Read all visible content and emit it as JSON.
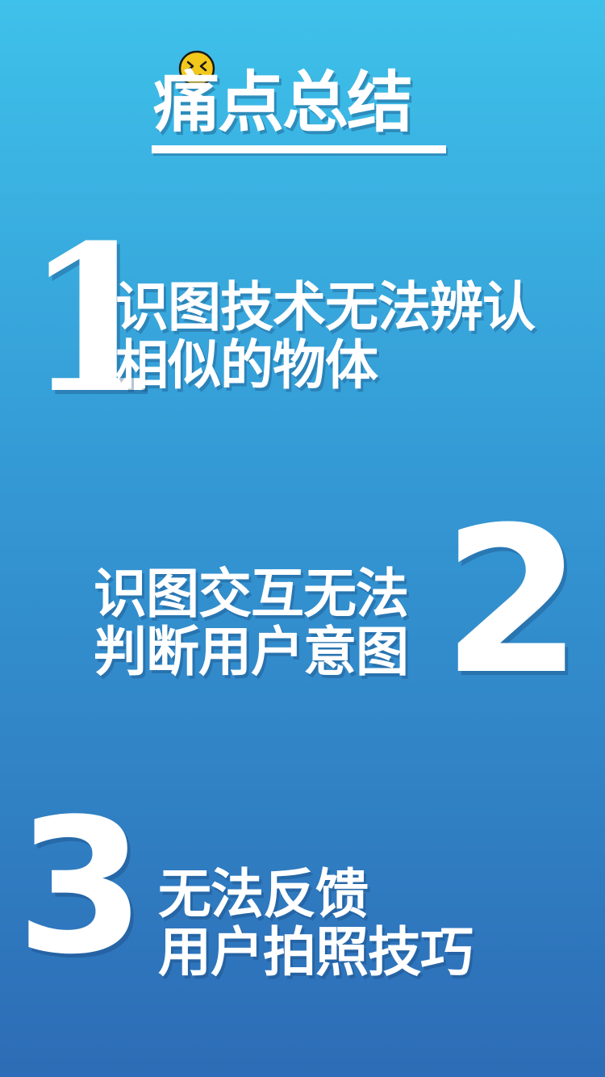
{
  "header": {
    "title": "痛点总结",
    "emoji_icon": "dizzy-face-icon"
  },
  "items": [
    {
      "number": "1",
      "lines": [
        "识图技术无法辨认",
        "相似的物体"
      ]
    },
    {
      "number": "2",
      "lines": [
        "识图交互无法",
        "判断用户意图"
      ]
    },
    {
      "number": "3",
      "lines": [
        "无法反馈",
        "用户拍照技巧"
      ]
    }
  ],
  "colors": {
    "background_top": "#3ec1ea",
    "background_bottom": "#2d6cb6",
    "text": "#ffffff",
    "emoji_fill": "#f2c81b"
  }
}
